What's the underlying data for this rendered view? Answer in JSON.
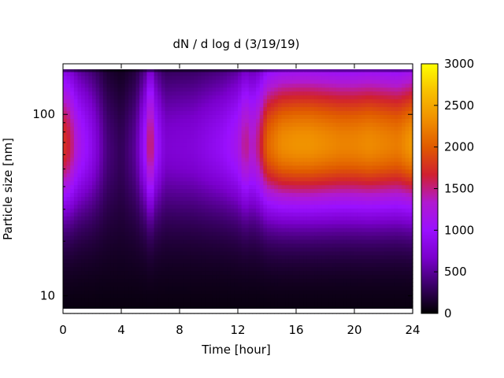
{
  "chart_data": {
    "type": "heatmap",
    "title": "dN / d log d (3/19/19)",
    "xlabel": "Time [hour]",
    "ylabel": "Particle size [nm]",
    "xlim": [
      0,
      24
    ],
    "ylim": [
      8,
      190
    ],
    "y_scale": "log",
    "x_ticks": [
      0,
      4,
      8,
      12,
      16,
      20,
      24
    ],
    "x_tick_labels": [
      "0",
      "4",
      "8",
      "12",
      "16",
      "20",
      "24"
    ],
    "y_ticks": [
      10,
      100
    ],
    "y_tick_labels": [
      "10",
      "100"
    ],
    "colorbar": {
      "min": 0,
      "max": 3000,
      "ticks": [
        0,
        500,
        1000,
        1500,
        2000,
        2500,
        3000
      ],
      "tick_labels": [
        "0",
        "500",
        "1000",
        "1500",
        "2000",
        "2500",
        "3000"
      ],
      "colormap": [
        "#000000",
        "#3a0066",
        "#7a00cc",
        "#9a10ff",
        "#b01ad0",
        "#d02030",
        "#e05a00",
        "#f09000",
        "#f8c000",
        "#ffff00"
      ]
    },
    "peak_diameter_nm": 70,
    "intensity_by_time": {
      "hours": [
        0,
        0.5,
        1,
        2,
        3,
        4,
        5,
        5.7,
        6,
        6.3,
        7,
        9,
        11,
        12,
        12.5,
        13,
        13.5,
        14,
        15,
        16,
        17,
        18,
        19,
        20,
        21,
        22,
        23,
        24
      ],
      "peak_values": [
        1750,
        1550,
        1150,
        800,
        350,
        220,
        450,
        1050,
        1700,
        1050,
        650,
        700,
        900,
        1100,
        1450,
        1250,
        1500,
        2000,
        2250,
        2300,
        2300,
        2250,
        2200,
        2200,
        2250,
        2200,
        2150,
        2350
      ]
    },
    "grid": false,
    "legend": "colorbar-right"
  }
}
